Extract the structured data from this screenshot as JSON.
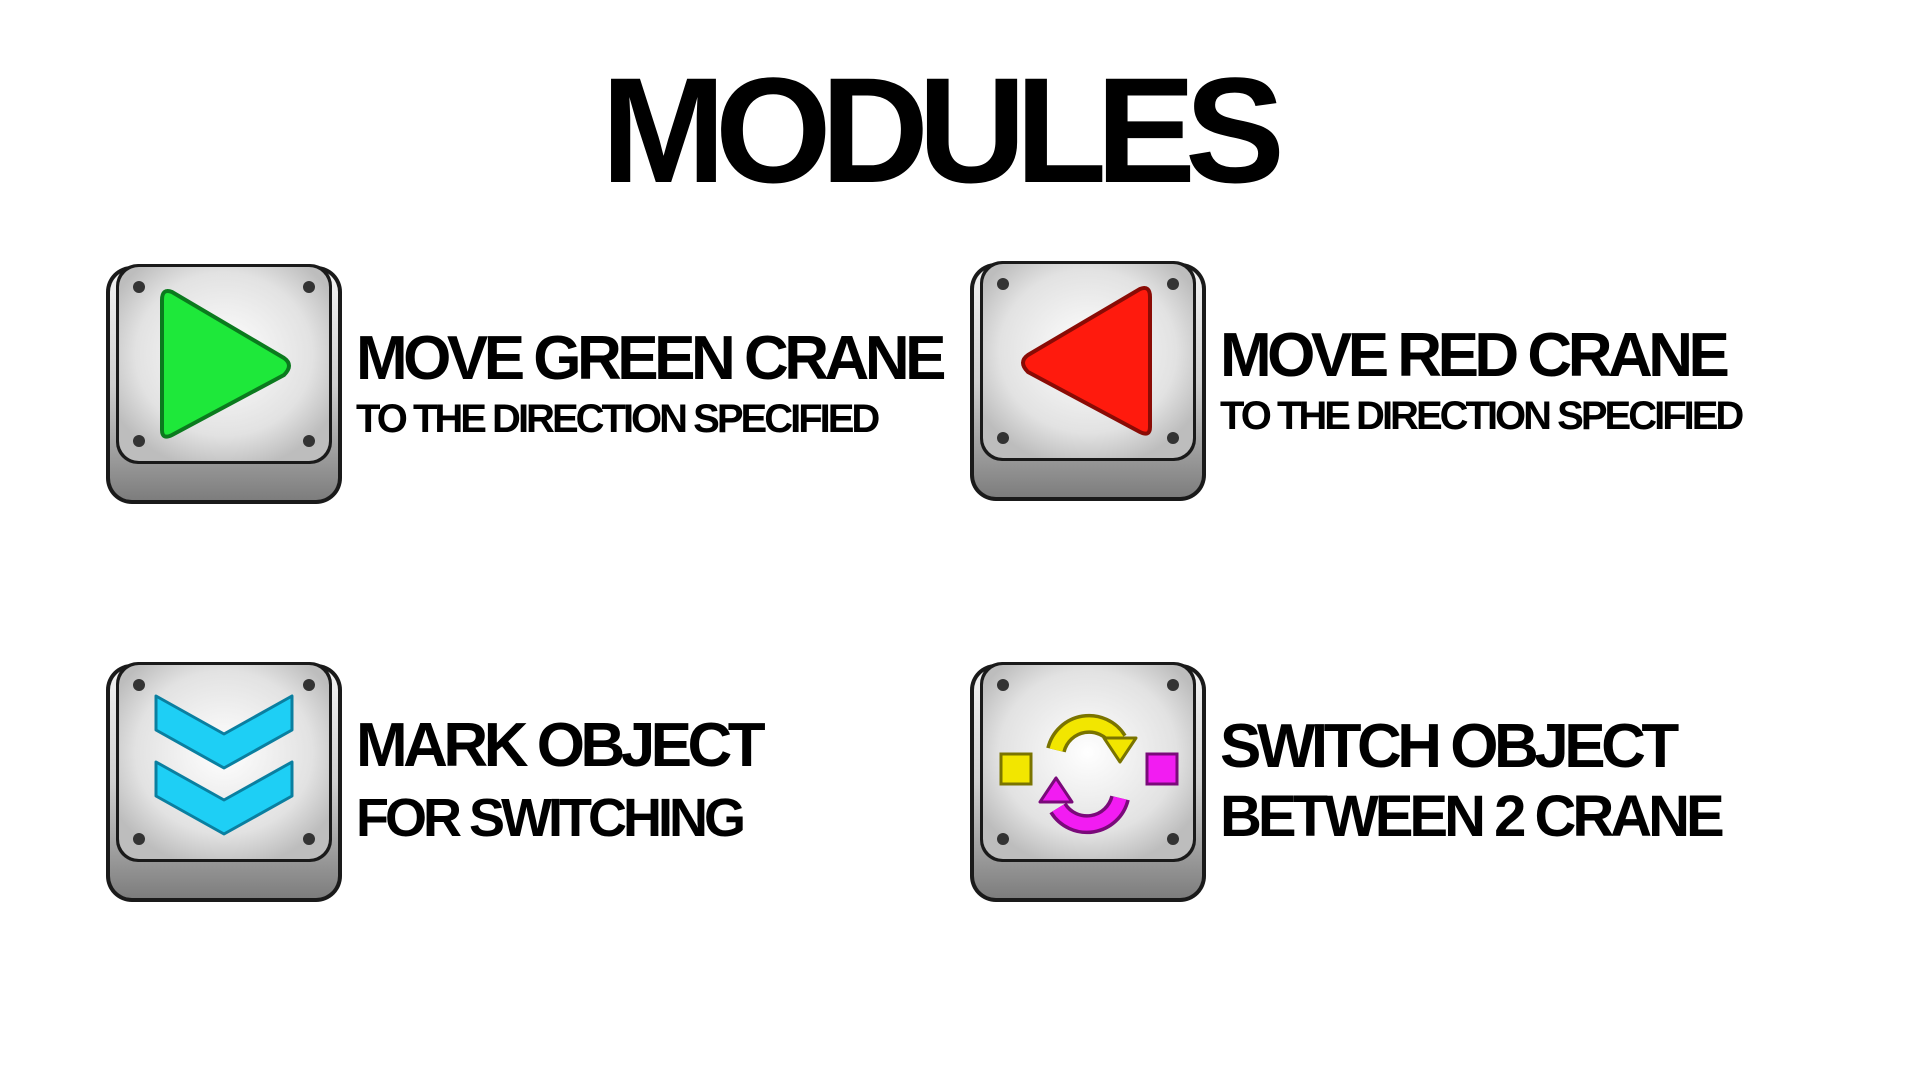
{
  "title": "MODULES",
  "modules": [
    {
      "id": "move-green",
      "line1": "MOVE GREEN CRANE",
      "line2": "TO THE DIRECTION SPECIFIED",
      "icon": "green-play-triangle-icon",
      "color": "#1ee83a"
    },
    {
      "id": "move-red",
      "line1": "MOVE RED CRANE",
      "line2": "TO THE DIRECTION SPECIFIED",
      "icon": "red-reverse-triangle-icon",
      "color": "#ff1a0d"
    },
    {
      "id": "mark-object",
      "line1": "MARK OBJECT",
      "line2": "FOR SWITCHING",
      "icon": "blue-double-chevron-down-icon",
      "color": "#1ecff5"
    },
    {
      "id": "switch-object",
      "line1": "SWITCH OBJECT",
      "line2": "BETWEEN 2 CRANE",
      "icon": "swap-cycle-arrows-icon",
      "colors": {
        "yellow": "#f2e600",
        "magenta": "#f21cf2"
      }
    }
  ]
}
